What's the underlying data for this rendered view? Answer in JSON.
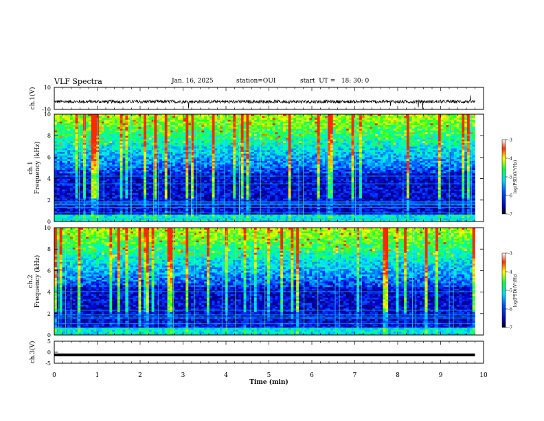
{
  "header": {
    "title": "VLF Spectra",
    "date": "Jan. 16, 2025",
    "station": "station=OUI",
    "start": "start  UT =   18: 30: 0"
  },
  "chart_data": [
    {
      "type": "line",
      "ylabel": "ch.1(V)",
      "ylim": [
        -10,
        10
      ],
      "yticks": [
        "10",
        "-10"
      ],
      "description_values": {
        "baseline": -3,
        "noise_amp": 1.5
      }
    },
    {
      "type": "heatmap",
      "ylabel_line1": "ch.1",
      "ylabel_line2": "Frequency (kHz)",
      "ylim": [
        0,
        10
      ],
      "yticks": [
        "0",
        "2",
        "4",
        "6",
        "8",
        "10"
      ],
      "colorbar": {
        "label": "log(PSD)(V²/Hz)",
        "range": [
          -7,
          -3
        ],
        "ticks": [
          "-3",
          "-4",
          "-5",
          "-6",
          "-7"
        ]
      }
    },
    {
      "type": "heatmap",
      "ylabel_line1": "ch.2",
      "ylabel_line2": "Frequency (kHz)",
      "ylim": [
        0,
        10
      ],
      "yticks": [
        "0",
        "2",
        "4",
        "6",
        "8",
        "10"
      ],
      "colorbar": {
        "label": "log(PSD)(V²/Hz)",
        "range": [
          -7,
          -3
        ],
        "ticks": [
          "-3",
          "-4",
          "-5",
          "-6",
          "-7"
        ]
      }
    },
    {
      "type": "line",
      "ylabel": "ch.3(V)",
      "ylim": [
        -5,
        5
      ],
      "yticks": [
        "5",
        "0",
        "-5"
      ],
      "values_level": -1.2
    }
  ],
  "xaxis": {
    "label": "Time (min)",
    "range": [
      0,
      10
    ],
    "ticks": [
      "0",
      "1",
      "2",
      "3",
      "4",
      "5",
      "6",
      "7",
      "8",
      "9",
      "10"
    ],
    "data_end": 9.8
  }
}
